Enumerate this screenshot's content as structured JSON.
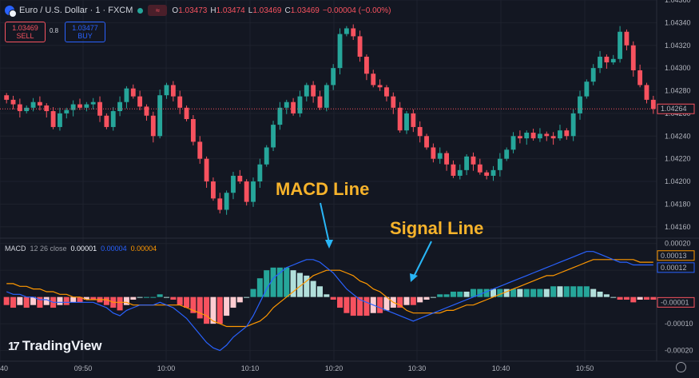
{
  "header": {
    "symbol": "Euro / U.S. Dollar · 1 · FXCM",
    "wave_icon": "≈",
    "ohlc": [
      {
        "k": "O",
        "v": "1.03473"
      },
      {
        "k": "H",
        "v": "1.03474"
      },
      {
        "k": "L",
        "v": "1.03469"
      },
      {
        "k": "C",
        "v": "1.03469"
      },
      {
        "k": "",
        "v": "−0.00004 (−0.00%)"
      }
    ]
  },
  "trade": {
    "sell_price": "1.03469",
    "sell_label": "SELL",
    "spread": "0.8",
    "buy_price": "1.03477",
    "buy_label": "BUY"
  },
  "macd_header": {
    "name": "MACD",
    "params": "12 26 close",
    "hist": "0.00001",
    "macd": "0.00004",
    "signal": "0.00004"
  },
  "annotations": {
    "macd_line": "MACD Line",
    "signal_line": "Signal Line"
  },
  "branding": {
    "logo_mark": "17",
    "logo_text": "TradingView"
  },
  "colors": {
    "up": "#26a69a",
    "down": "#f7525f",
    "macd": "#2962ff",
    "signal": "#ff9800",
    "hist_up_strong": "#26a69a",
    "hist_up_weak": "#b2dfdb",
    "hist_down_strong": "#f7525f",
    "hist_down_weak": "#ffcdd2",
    "background": "#131722"
  },
  "chart_data": [
    {
      "type": "candlestick",
      "title": "Euro / U.S. Dollar · 1 · FXCM",
      "ylim": [
        1.0415,
        1.0436
      ],
      "y_ticks": [
        "1.04360",
        "1.04340",
        "1.04320",
        "1.04300",
        "1.04280",
        "1.04260",
        "1.04240",
        "1.04220",
        "1.04200",
        "1.04180",
        "1.04160"
      ],
      "last_price_label": "1.04264",
      "x_ticks": [
        "40",
        "09:50",
        "10:00",
        "10:10",
        "10:20",
        "10:30",
        "10:40",
        "10:50"
      ],
      "closes": [
        1.04272,
        1.04268,
        1.04262,
        1.04265,
        1.0427,
        1.04267,
        1.04262,
        1.04248,
        1.0426,
        1.04263,
        1.04268,
        1.04265,
        1.04268,
        1.0427,
        1.04258,
        1.04248,
        1.04262,
        1.0427,
        1.04282,
        1.04275,
        1.04266,
        1.04258,
        1.0424,
        1.04276,
        1.04285,
        1.04275,
        1.04265,
        1.04255,
        1.04235,
        1.0422,
        1.042,
        1.04185,
        1.04175,
        1.0419,
        1.04205,
        1.042,
        1.04182,
        1.042,
        1.04215,
        1.0423,
        1.0425,
        1.04265,
        1.0427,
        1.0426,
        1.04275,
        1.04285,
        1.04275,
        1.04265,
        1.04285,
        1.043,
        1.0433,
        1.04335,
        1.04328,
        1.0431,
        1.04295,
        1.04285,
        1.04283,
        1.04275,
        1.04265,
        1.04245,
        1.0426,
        1.04248,
        1.0424,
        1.0423,
        1.0422,
        1.04225,
        1.04215,
        1.04205,
        1.0421,
        1.04222,
        1.04215,
        1.04208,
        1.04205,
        1.0421,
        1.0422,
        1.04228,
        1.0424,
        1.04238,
        1.04243,
        1.04238,
        1.04242,
        1.0424,
        1.04238,
        1.04245,
        1.0424,
        1.0426,
        1.04275,
        1.04288,
        1.043,
        1.0431,
        1.04305,
        1.04308,
        1.04332,
        1.0432,
        1.04298,
        1.04285,
        1.04272,
        1.04264
      ]
    },
    {
      "type": "macd",
      "name": "MACD",
      "params": "12 26 close",
      "ylim": [
        -0.00024,
        0.00022
      ],
      "y_ticks": [
        "0.00020",
        "0.00010",
        "-0.00010",
        "-0.00020"
      ],
      "labels": {
        "signal": "0.00013",
        "macd": "0.00012",
        "hist": "-0.00001"
      },
      "series": [
        {
          "name": "MACD",
          "values": [
            2e-05,
            1e-05,
            1e-05,
            0.0,
            0.0,
            -1e-05,
            -1e-05,
            -2e-05,
            -2e-05,
            -2e-05,
            -2e-05,
            -2e-05,
            -2e-05,
            -2e-05,
            -3e-05,
            -4e-05,
            -6e-05,
            -7e-05,
            -5e-05,
            -4e-05,
            -3e-05,
            -3e-05,
            -3e-05,
            -2e-05,
            -3e-05,
            -4e-05,
            -6e-05,
            -8e-05,
            -0.00011,
            -0.00014,
            -0.00017,
            -0.00019,
            -0.0002,
            -0.00018,
            -0.00015,
            -0.00013,
            -0.00011,
            -7e-05,
            -2e-05,
            3e-05,
            7e-05,
            9e-05,
            0.00011,
            0.00012,
            0.00013,
            0.00014,
            0.00014,
            0.00013,
            0.00011,
            9e-05,
            6e-05,
            3e-05,
            1e-05,
            -1e-05,
            -2e-05,
            -3e-05,
            -4e-05,
            -5e-05,
            -6e-05,
            -7e-05,
            -8e-05,
            -9e-05,
            -8e-05,
            -7e-05,
            -6e-05,
            -5e-05,
            -4e-05,
            -3e-05,
            -2e-05,
            -1e-05,
            0.0,
            1e-05,
            2e-05,
            3e-05,
            4e-05,
            5e-05,
            6e-05,
            7e-05,
            8e-05,
            9e-05,
            0.0001,
            0.00011,
            0.00012,
            0.00013,
            0.00014,
            0.00015,
            0.00016,
            0.00017,
            0.00017,
            0.00016,
            0.00015,
            0.00014,
            0.00013,
            0.00013,
            0.00012,
            0.00012,
            0.00012,
            0.00012
          ]
        },
        {
          "name": "Signal",
          "values": [
            5e-05,
            5e-05,
            4e-05,
            4e-05,
            3e-05,
            3e-05,
            2e-05,
            2e-05,
            1e-05,
            1e-05,
            0.0,
            0.0,
            -1e-05,
            -1e-05,
            -1e-05,
            -1e-05,
            -2e-05,
            -2e-05,
            -2e-05,
            -3e-05,
            -3e-05,
            -3e-05,
            -3e-05,
            -3e-05,
            -3e-05,
            -3e-05,
            -3e-05,
            -4e-05,
            -5e-05,
            -6e-05,
            -7e-05,
            -9e-05,
            -0.0001,
            -0.00011,
            -0.00011,
            -0.00011,
            -0.00011,
            -0.0001,
            -9e-05,
            -7e-05,
            -4e-05,
            -2e-05,
            0.0,
            2e-05,
            4e-05,
            6e-05,
            8e-05,
            9e-05,
            0.0001,
            0.0001,
            0.0001,
            9e-05,
            8e-05,
            6e-05,
            5e-05,
            3e-05,
            2e-05,
            0.0,
            -2e-05,
            -3e-05,
            -5e-05,
            -6e-05,
            -6e-05,
            -6e-05,
            -6e-05,
            -6e-05,
            -5e-05,
            -5e-05,
            -4e-05,
            -3e-05,
            -3e-05,
            -2e-05,
            -1e-05,
            0.0,
            1e-05,
            2e-05,
            3e-05,
            4e-05,
            5e-05,
            6e-05,
            7e-05,
            8e-05,
            8e-05,
            9e-05,
            0.0001,
            0.00011,
            0.00012,
            0.00013,
            0.00014,
            0.00014,
            0.00014,
            0.00014,
            0.00014,
            0.00014,
            0.00014,
            0.00013,
            0.00013,
            0.00013
          ]
        }
      ]
    }
  ]
}
